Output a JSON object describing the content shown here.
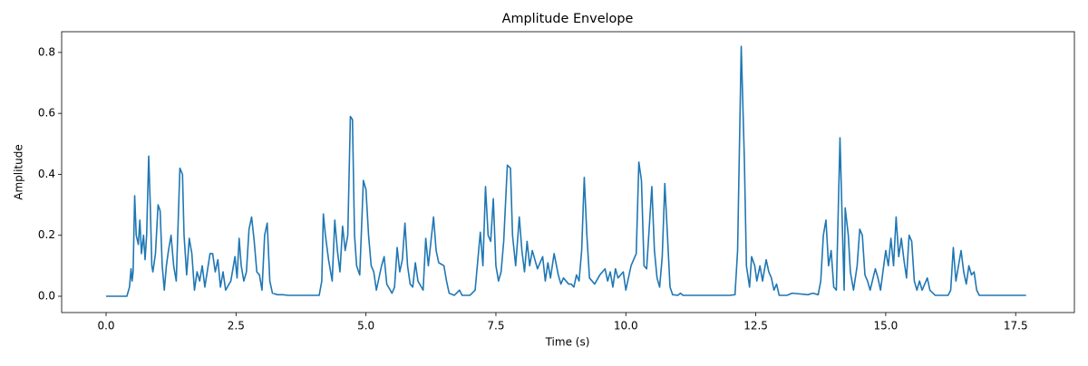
{
  "chart_data": {
    "type": "line",
    "title": "Amplitude Envelope",
    "xlabel": "Time (s)",
    "ylabel": "Amplitude",
    "x": [
      0,
      0.4,
      0.45,
      0.48,
      0.5,
      0.52,
      0.55,
      0.58,
      0.62,
      0.65,
      0.68,
      0.72,
      0.75,
      0.78,
      0.82,
      0.85,
      0.88,
      0.9,
      0.95,
      1.0,
      1.04,
      1.08,
      1.12,
      1.16,
      1.2,
      1.25,
      1.3,
      1.35,
      1.42,
      1.47,
      1.5,
      1.55,
      1.6,
      1.65,
      1.7,
      1.75,
      1.8,
      1.85,
      1.9,
      2.0,
      2.05,
      2.1,
      2.15,
      2.2,
      2.25,
      2.3,
      2.4,
      2.48,
      2.52,
      2.56,
      2.6,
      2.65,
      2.7,
      2.75,
      2.8,
      2.85,
      2.9,
      2.95,
      3.0,
      3.05,
      3.1,
      3.15,
      3.2,
      3.3,
      3.4,
      3.5,
      4.1,
      4.15,
      4.18,
      4.22,
      4.28,
      4.35,
      4.4,
      4.45,
      4.5,
      4.55,
      4.6,
      4.65,
      4.7,
      4.74,
      4.78,
      4.82,
      4.88,
      4.95,
      5.0,
      5.05,
      5.1,
      5.15,
      5.2,
      5.3,
      5.35,
      5.4,
      5.5,
      5.55,
      5.6,
      5.65,
      5.7,
      5.75,
      5.8,
      5.85,
      5.9,
      5.95,
      6.0,
      6.1,
      6.15,
      6.2,
      6.3,
      6.35,
      6.4,
      6.5,
      6.55,
      6.6,
      6.7,
      6.8,
      6.85,
      7.0,
      7.1,
      7.2,
      7.25,
      7.3,
      7.35,
      7.4,
      7.45,
      7.5,
      7.55,
      7.6,
      7.65,
      7.72,
      7.78,
      7.82,
      7.88,
      7.95,
      8.0,
      8.05,
      8.1,
      8.15,
      8.2,
      8.3,
      8.4,
      8.45,
      8.5,
      8.55,
      8.62,
      8.7,
      8.75,
      8.8,
      8.9,
      8.95,
      9.0,
      9.05,
      9.1,
      9.15,
      9.2,
      9.25,
      9.3,
      9.4,
      9.5,
      9.6,
      9.65,
      9.7,
      9.75,
      9.8,
      9.85,
      9.95,
      10.0,
      10.1,
      10.2,
      10.25,
      10.3,
      10.35,
      10.4,
      10.5,
      10.55,
      10.6,
      10.65,
      10.7,
      10.75,
      10.8,
      10.85,
      10.9,
      11.0,
      11.05,
      11.1,
      12.0,
      12.1,
      12.15,
      12.22,
      12.28,
      12.32,
      12.38,
      12.42,
      12.48,
      12.52,
      12.58,
      12.63,
      12.7,
      12.75,
      12.8,
      12.85,
      12.9,
      12.95,
      13.1,
      13.2,
      13.5,
      13.6,
      13.7,
      13.75,
      13.8,
      13.85,
      13.9,
      13.95,
      14.0,
      14.05,
      14.12,
      14.17,
      14.2,
      14.22,
      14.28,
      14.32,
      14.38,
      14.45,
      14.5,
      14.55,
      14.6,
      14.65,
      14.7,
      14.8,
      14.85,
      14.9,
      15.0,
      15.05,
      15.1,
      15.15,
      15.2,
      15.25,
      15.3,
      15.35,
      15.4,
      15.45,
      15.5,
      15.55,
      15.6,
      15.65,
      15.7,
      15.8,
      15.85,
      15.95,
      16.2,
      16.25,
      16.3,
      16.35,
      16.45,
      16.5,
      16.55,
      16.6,
      16.65,
      16.7,
      16.75,
      16.8,
      17.7
    ],
    "values": [
      0,
      0,
      0.03,
      0.09,
      0.05,
      0.08,
      0.33,
      0.2,
      0.17,
      0.25,
      0.14,
      0.2,
      0.12,
      0.2,
      0.46,
      0.3,
      0.1,
      0.08,
      0.14,
      0.3,
      0.28,
      0.1,
      0.02,
      0.1,
      0.15,
      0.2,
      0.1,
      0.05,
      0.42,
      0.4,
      0.2,
      0.07,
      0.19,
      0.14,
      0.02,
      0.08,
      0.05,
      0.1,
      0.03,
      0.14,
      0.14,
      0.08,
      0.12,
      0.03,
      0.08,
      0.02,
      0.05,
      0.13,
      0.06,
      0.19,
      0.1,
      0.05,
      0.08,
      0.22,
      0.26,
      0.18,
      0.08,
      0.07,
      0.02,
      0.2,
      0.24,
      0.05,
      0.01,
      0.005,
      0.005,
      0.003,
      0.003,
      0.05,
      0.27,
      0.2,
      0.12,
      0.05,
      0.25,
      0.15,
      0.08,
      0.23,
      0.15,
      0.2,
      0.59,
      0.58,
      0.2,
      0.1,
      0.07,
      0.38,
      0.35,
      0.2,
      0.1,
      0.08,
      0.02,
      0.1,
      0.13,
      0.04,
      0.01,
      0.03,
      0.16,
      0.08,
      0.12,
      0.24,
      0.1,
      0.04,
      0.03,
      0.11,
      0.05,
      0.02,
      0.19,
      0.1,
      0.26,
      0.15,
      0.11,
      0.1,
      0.05,
      0.01,
      0.003,
      0.02,
      0.003,
      0.003,
      0.02,
      0.21,
      0.1,
      0.36,
      0.2,
      0.18,
      0.32,
      0.1,
      0.05,
      0.08,
      0.18,
      0.43,
      0.42,
      0.2,
      0.1,
      0.26,
      0.15,
      0.08,
      0.18,
      0.1,
      0.15,
      0.09,
      0.13,
      0.05,
      0.11,
      0.06,
      0.14,
      0.07,
      0.04,
      0.06,
      0.04,
      0.04,
      0.03,
      0.07,
      0.05,
      0.15,
      0.39,
      0.2,
      0.06,
      0.04,
      0.07,
      0.09,
      0.05,
      0.08,
      0.03,
      0.09,
      0.06,
      0.08,
      0.02,
      0.1,
      0.14,
      0.44,
      0.38,
      0.1,
      0.09,
      0.36,
      0.15,
      0.06,
      0.03,
      0.13,
      0.37,
      0.2,
      0.03,
      0.005,
      0.003,
      0.01,
      0.003,
      0.003,
      0.005,
      0.15,
      0.82,
      0.45,
      0.1,
      0.03,
      0.13,
      0.1,
      0.05,
      0.1,
      0.05,
      0.12,
      0.08,
      0.06,
      0.02,
      0.04,
      0.003,
      0.003,
      0.01,
      0.005,
      0.01,
      0.005,
      0.05,
      0.2,
      0.25,
      0.1,
      0.15,
      0.03,
      0.02,
      0.52,
      0.2,
      0.02,
      0.29,
      0.2,
      0.08,
      0.02,
      0.1,
      0.22,
      0.2,
      0.07,
      0.05,
      0.02,
      0.09,
      0.06,
      0.02,
      0.15,
      0.1,
      0.19,
      0.1,
      0.26,
      0.13,
      0.19,
      0.12,
      0.06,
      0.2,
      0.18,
      0.05,
      0.02,
      0.05,
      0.02,
      0.06,
      0.02,
      0.003,
      0.003,
      0.02,
      0.16,
      0.05,
      0.15,
      0.08,
      0.04,
      0.1,
      0.07,
      0.08,
      0.02,
      0.003,
      0.003
    ],
    "color": "#1f77b4",
    "xlim": [
      -0.855,
      18.63
    ],
    "ylim": [
      -0.0535,
      0.868
    ],
    "xticks": [
      {
        "value": 0,
        "label": "0.0"
      },
      2.5,
      {
        "value": 5,
        "label": "5.0"
      },
      7.5,
      {
        "value": 10,
        "label": "10.0"
      },
      12.5,
      {
        "value": 15,
        "label": "15.0"
      },
      17.5
    ],
    "yticks": [
      {
        "value": 0,
        "label": "0.0"
      },
      0.2,
      0.4,
      0.6,
      0.8
    ]
  }
}
